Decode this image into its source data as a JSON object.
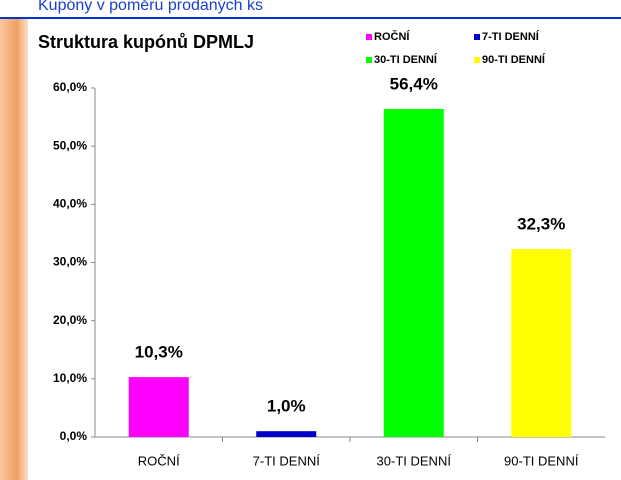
{
  "header": {
    "title": "Kupóny v poměru prodaných ks"
  },
  "chart_data": {
    "type": "bar",
    "title": "Struktura kupónů DPMLJ",
    "categories": [
      "ROČNÍ",
      "7-TI DENNÍ",
      "30-TI DENNÍ",
      "90-TI DENNÍ"
    ],
    "values": [
      10.3,
      1.0,
      56.4,
      32.3
    ],
    "value_labels": [
      "10,3%",
      "1,0%",
      "56,4%",
      "32,3%"
    ],
    "colors": [
      "#ff00ff",
      "#0000cc",
      "#00ff00",
      "#ffff00"
    ],
    "ylim": [
      0,
      60
    ],
    "yticks": [
      {
        "value": 0,
        "label": "0,0%"
      },
      {
        "value": 10,
        "label": "10,0%"
      },
      {
        "value": 20,
        "label": "20,0%"
      },
      {
        "value": 30,
        "label": "30,0%"
      },
      {
        "value": 40,
        "label": "40,0%"
      },
      {
        "value": 50,
        "label": "50,0%"
      },
      {
        "value": 60,
        "label": "60,0%"
      }
    ],
    "grid": false,
    "legend": "top-right"
  }
}
